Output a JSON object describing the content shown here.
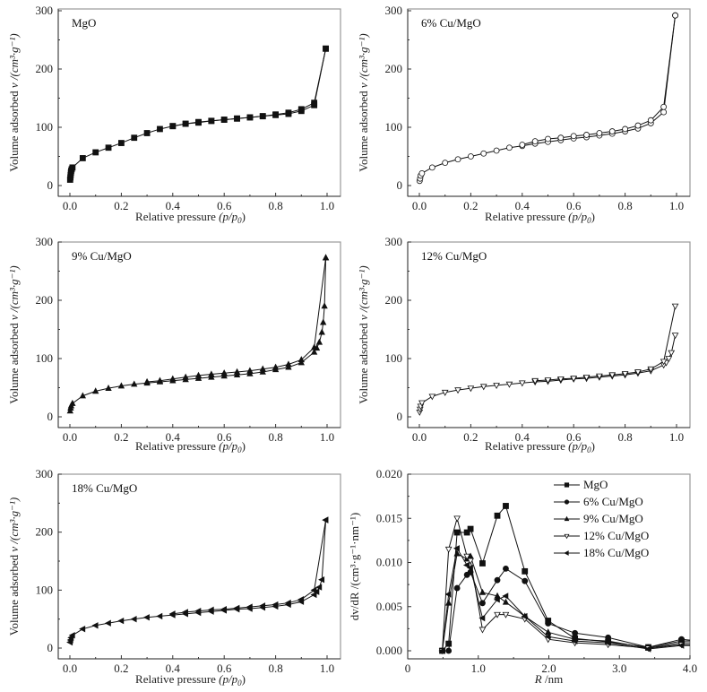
{
  "chart_data": [
    {
      "type": "line",
      "panel_label": "MgO",
      "xlabel": "Relative pressure",
      "xlabel_suffix": "(p/p",
      "xlabel_sub": "0",
      "ylabel": "Volume adsorbed",
      "ylabel_unit": "v /(cm³·g⁻¹)",
      "xlim": [
        0,
        1.0
      ],
      "ylim": [
        0,
        300
      ],
      "xticks": [
        "0.0",
        "0.2",
        "0.4",
        "0.6",
        "0.8",
        "1.0"
      ],
      "yticks": [
        "0",
        "100",
        "200",
        "300"
      ],
      "marker": "square-filled",
      "series": [
        {
          "name": "adsorption",
          "x": [
            0.001,
            0.002,
            0.003,
            0.004,
            0.005,
            0.007,
            0.01,
            0.05,
            0.1,
            0.15,
            0.2,
            0.25,
            0.3,
            0.35,
            0.4,
            0.45,
            0.5,
            0.55,
            0.6,
            0.65,
            0.7,
            0.75,
            0.8,
            0.85,
            0.9,
            0.95,
            0.995
          ],
          "y": [
            10,
            14,
            18,
            22,
            25,
            28,
            31,
            47,
            57,
            65,
            73,
            82,
            90,
            97,
            102,
            106,
            108,
            111,
            113,
            115,
            117,
            119,
            121,
            123,
            128,
            138,
            235
          ]
        },
        {
          "name": "desorption",
          "x": [
            0.995,
            0.95,
            0.9,
            0.85,
            0.8,
            0.75,
            0.7,
            0.65,
            0.6,
            0.55,
            0.5,
            0.45,
            0.4
          ],
          "y": [
            235,
            142,
            131,
            125,
            122,
            119,
            117,
            115,
            113,
            111,
            109,
            106,
            102
          ]
        }
      ]
    },
    {
      "type": "line",
      "panel_label": "6% Cu/MgO",
      "xlabel": "Relative pressure",
      "xlabel_suffix": "(p/p",
      "xlabel_sub": "0",
      "ylabel": "Volume adsorbed",
      "ylabel_unit": "v /(cm³·g⁻¹)",
      "xlim": [
        0,
        1.0
      ],
      "ylim": [
        0,
        300
      ],
      "xticks": [
        "0.0",
        "0.2",
        "0.4",
        "0.6",
        "0.8",
        "1.0"
      ],
      "yticks": [
        "0",
        "100",
        "200",
        "300"
      ],
      "marker": "circle-open",
      "series": [
        {
          "name": "adsorption",
          "x": [
            0.001,
            0.003,
            0.005,
            0.01,
            0.05,
            0.1,
            0.15,
            0.2,
            0.25,
            0.3,
            0.35,
            0.4,
            0.45,
            0.5,
            0.55,
            0.6,
            0.65,
            0.7,
            0.75,
            0.8,
            0.85,
            0.9,
            0.95,
            0.995
          ],
          "y": [
            8,
            12,
            17,
            21,
            31,
            39,
            45,
            50,
            55,
            60,
            65,
            68,
            72,
            75,
            78,
            81,
            83,
            86,
            89,
            93,
            98,
            107,
            126,
            292
          ]
        },
        {
          "name": "desorption",
          "x": [
            0.995,
            0.95,
            0.9,
            0.85,
            0.8,
            0.75,
            0.7,
            0.65,
            0.6,
            0.55,
            0.5,
            0.45,
            0.4
          ],
          "y": [
            292,
            135,
            112,
            103,
            97,
            93,
            90,
            87,
            85,
            82,
            80,
            76,
            70
          ]
        }
      ]
    },
    {
      "type": "line",
      "panel_label": "9% Cu/MgO",
      "xlabel": "Relative pressure",
      "xlabel_suffix": "(p/p",
      "xlabel_sub": "0",
      "ylabel": "Volume adsorbed",
      "ylabel_unit": "v /(cm³·g⁻¹)",
      "xlim": [
        0,
        1.0
      ],
      "ylim": [
        0,
        300
      ],
      "xticks": [
        "0.0",
        "0.2",
        "0.4",
        "0.6",
        "0.8",
        "1.0"
      ],
      "yticks": [
        "0",
        "100",
        "200",
        "300"
      ],
      "marker": "triangle-up-filled",
      "series": [
        {
          "name": "adsorption",
          "x": [
            0.001,
            0.003,
            0.005,
            0.01,
            0.05,
            0.1,
            0.15,
            0.2,
            0.25,
            0.3,
            0.35,
            0.4,
            0.45,
            0.5,
            0.55,
            0.6,
            0.65,
            0.7,
            0.75,
            0.8,
            0.85,
            0.9,
            0.95,
            0.96,
            0.97,
            0.98,
            0.985,
            0.99,
            0.995
          ],
          "y": [
            10,
            15,
            19,
            23,
            36,
            44,
            49,
            53,
            56,
            58,
            60,
            62,
            64,
            66,
            68,
            70,
            72,
            74,
            77,
            81,
            85,
            93,
            111,
            118,
            128,
            145,
            162,
            190,
            273
          ]
        },
        {
          "name": "desorption",
          "x": [
            0.995,
            0.95,
            0.9,
            0.85,
            0.8,
            0.75,
            0.7,
            0.65,
            0.6,
            0.55,
            0.5,
            0.45,
            0.4,
            0.35,
            0.3
          ],
          "y": [
            273,
            119,
            98,
            90,
            85,
            82,
            79,
            77,
            75,
            73,
            71,
            68,
            65,
            62,
            60
          ]
        }
      ]
    },
    {
      "type": "line",
      "panel_label": "12% Cu/MgO",
      "xlabel": "Relative pressure",
      "xlabel_suffix": "(p/p",
      "xlabel_sub": "0",
      "ylabel": "Volume adsorbed",
      "ylabel_unit": "v /(cm³·g⁻¹)",
      "xlim": [
        0,
        1.0
      ],
      "ylim": [
        0,
        300
      ],
      "xticks": [
        "0.0",
        "0.2",
        "0.4",
        "0.6",
        "0.8",
        "1.0"
      ],
      "yticks": [
        "0",
        "100",
        "200",
        "300"
      ],
      "marker": "triangle-down-open",
      "series": [
        {
          "name": "adsorption",
          "x": [
            0.001,
            0.003,
            0.005,
            0.01,
            0.05,
            0.1,
            0.15,
            0.2,
            0.25,
            0.3,
            0.35,
            0.4,
            0.45,
            0.5,
            0.55,
            0.6,
            0.65,
            0.7,
            0.75,
            0.8,
            0.85,
            0.9,
            0.95,
            0.96,
            0.97,
            0.98,
            0.995
          ],
          "y": [
            8,
            13,
            18,
            24,
            35,
            42,
            46,
            49,
            52,
            54,
            56,
            58,
            60,
            61,
            63,
            65,
            66,
            68,
            70,
            72,
            75,
            79,
            89,
            93,
            100,
            110,
            140
          ]
        },
        {
          "name": "desorption",
          "x": [
            0.995,
            0.95,
            0.9,
            0.85,
            0.8,
            0.75,
            0.7,
            0.65,
            0.6,
            0.55,
            0.5,
            0.45
          ],
          "y": [
            190,
            95,
            82,
            77,
            74,
            72,
            70,
            68,
            66,
            65,
            63,
            62
          ]
        }
      ]
    },
    {
      "type": "line",
      "panel_label": "18% Cu/MgO",
      "xlabel": "Relative pressure",
      "xlabel_suffix": "(p/p",
      "xlabel_sub": "0",
      "ylabel": "Volume adsorbed",
      "ylabel_unit": "v /(cm³·g⁻¹)",
      "xlim": [
        0,
        1.0
      ],
      "ylim": [
        0,
        300
      ],
      "xticks": [
        "0.0",
        "0.2",
        "0.4",
        "0.6",
        "0.8",
        "1.0"
      ],
      "yticks": [
        "0",
        "100",
        "200",
        "300"
      ],
      "marker": "triangle-left-filled",
      "series": [
        {
          "name": "adsorption",
          "x": [
            0.001,
            0.003,
            0.005,
            0.01,
            0.05,
            0.1,
            0.15,
            0.2,
            0.25,
            0.3,
            0.35,
            0.4,
            0.45,
            0.5,
            0.55,
            0.6,
            0.65,
            0.7,
            0.75,
            0.8,
            0.85,
            0.9,
            0.95,
            0.96,
            0.97,
            0.98,
            0.995
          ],
          "y": [
            10,
            14,
            18,
            22,
            33,
            39,
            43,
            47,
            50,
            53,
            55,
            57,
            59,
            61,
            63,
            65,
            67,
            68,
            70,
            72,
            75,
            80,
            92,
            97,
            105,
            118,
            221
          ]
        },
        {
          "name": "desorption",
          "x": [
            0.995,
            0.95,
            0.9,
            0.85,
            0.8,
            0.75,
            0.7,
            0.65,
            0.6,
            0.55,
            0.5,
            0.45,
            0.4
          ],
          "y": [
            221,
            100,
            84,
            78,
            75,
            73,
            71,
            69,
            67,
            66,
            64,
            62,
            59
          ]
        }
      ]
    },
    {
      "type": "line",
      "title": "",
      "xlabel": "R /nm",
      "ylabel": "dv/dR /(cm³·g⁻¹·nm⁻¹)",
      "xlim": [
        0,
        4.0
      ],
      "ylim": [
        0,
        0.02
      ],
      "xticks": [
        "0",
        "1.0",
        "2.0",
        "3.0",
        "4.0"
      ],
      "yticks": [
        "0.000",
        "0.005",
        "0.010",
        "0.015",
        "0.020"
      ],
      "legend_position": "top-right",
      "x": [
        0.49,
        0.58,
        0.7,
        0.84,
        0.89,
        1.06,
        1.27,
        1.39,
        1.66,
        1.99,
        2.37,
        2.84,
        3.41,
        3.88,
        4.0
      ],
      "series": [
        {
          "name": "MgO",
          "marker": "square-filled",
          "values": [
            0.0,
            0.0008,
            0.0134,
            0.0134,
            0.0138,
            0.0099,
            0.0153,
            0.0164,
            0.009,
            0.0034,
            0.0014,
            0.001,
            0.0004,
            0.0011,
            0.0011
          ]
        },
        {
          "name": "6% Cu/MgO",
          "marker": "circle-filled",
          "values": [
            0.0,
            0.0,
            0.0071,
            0.0086,
            0.0089,
            0.0054,
            0.008,
            0.0093,
            0.0079,
            0.0031,
            0.002,
            0.0015,
            0.0004,
            0.0013,
            0.0012
          ]
        },
        {
          "name": "9% Cu/MgO",
          "marker": "triangle-up-filled",
          "values": [
            0.0,
            0.0054,
            0.011,
            0.0104,
            0.0107,
            0.0066,
            0.0062,
            0.0055,
            0.0039,
            0.0021,
            0.0013,
            0.0011,
            0.0003,
            0.0009,
            0.0009
          ]
        },
        {
          "name": "12% Cu/MgO",
          "marker": "triangle-down-open",
          "values": [
            0.0,
            0.0115,
            0.015,
            0.0107,
            0.0102,
            0.0024,
            0.0041,
            0.0041,
            0.0036,
            0.0013,
            0.0009,
            0.0007,
            0.0003,
            0.0007,
            0.0007
          ]
        },
        {
          "name": "18% Cu/MgO",
          "marker": "triangle-left-filled",
          "values": [
            0.0,
            0.0064,
            0.0116,
            0.0097,
            0.0094,
            0.0037,
            0.0058,
            0.0062,
            0.0039,
            0.0016,
            0.0011,
            0.0009,
            0.0002,
            0.0006,
            0.0006
          ]
        }
      ]
    }
  ]
}
